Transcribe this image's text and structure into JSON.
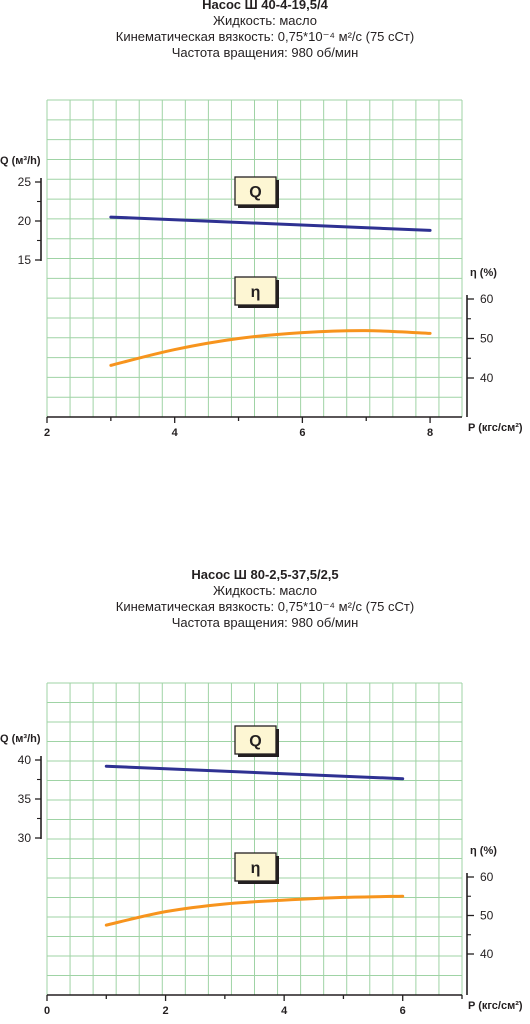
{
  "colors": {
    "grid": "#9fd3a5",
    "axis": "#231f20",
    "q_line": "#2e3192",
    "eta_line": "#f7941d",
    "label_bg": "#fdf6d3"
  },
  "chart_data": [
    {
      "type": "line",
      "title": "Насос Ш 40-4-19,5/4",
      "subtitle_lines": [
        "Жидкость: масло",
        "Кинематическая вязкость: 0,75*10⁻⁴ м²/с (75 сСт)",
        "Частота вращения: 980 об/мин"
      ],
      "xlabel": "P (кгс/см²)",
      "ylabel_left": "Q (м³/h)",
      "ylabel_right": "η (%)",
      "xlim": [
        2,
        8.5
      ],
      "x_ticks": [
        "2",
        "4",
        "6",
        "8"
      ],
      "left_ylim": [
        15,
        25
      ],
      "left_ticks": [
        "15",
        "20",
        "25"
      ],
      "right_ylim": [
        40,
        60
      ],
      "right_ticks": [
        "40",
        "50",
        "60"
      ],
      "grid": true,
      "series": [
        {
          "name": "Q",
          "axis": "left",
          "x": [
            3,
            8
          ],
          "y": [
            20.5,
            18.8
          ]
        },
        {
          "name": "η",
          "axis": "right",
          "x": [
            3,
            4,
            5,
            6,
            7,
            8
          ],
          "y": [
            43.2,
            47.2,
            50.0,
            51.5,
            52.0,
            51.3
          ]
        }
      ]
    },
    {
      "type": "line",
      "title": "Насос Ш 80-2,5-37,5/2,5",
      "subtitle_lines": [
        "Жидкость: масло",
        "Кинематическая вязкость: 0,75*10⁻⁴ м²/с (75 сСт)",
        "Частота вращения: 980 об/мин"
      ],
      "xlabel": "P (кгс/см²)",
      "ylabel_left": "Q (м³/h)",
      "ylabel_right": "η (%)",
      "xlim": [
        0,
        7
      ],
      "x_ticks": [
        "0",
        "2",
        "4",
        "6"
      ],
      "left_ylim": [
        30,
        40
      ],
      "left_ticks": [
        "30",
        "35",
        "40"
      ],
      "right_ylim": [
        40,
        60
      ],
      "right_ticks": [
        "40",
        "50",
        "60"
      ],
      "grid": true,
      "series": [
        {
          "name": "Q",
          "axis": "left",
          "x": [
            1,
            6
          ],
          "y": [
            39.2,
            37.6
          ]
        },
        {
          "name": "η",
          "axis": "right",
          "x": [
            1,
            2,
            3,
            4,
            5,
            6
          ],
          "y": [
            47.5,
            51.0,
            53.0,
            54.0,
            54.7,
            55.0
          ]
        }
      ]
    }
  ]
}
